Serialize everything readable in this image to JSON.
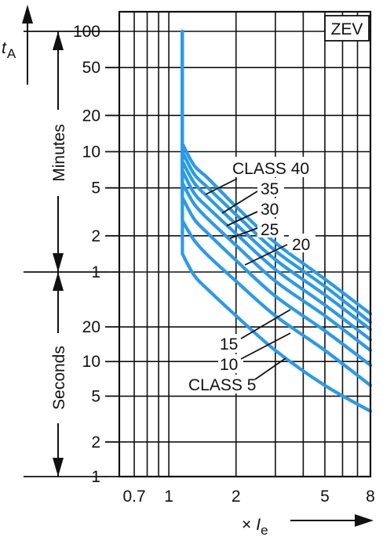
{
  "chart_data": {
    "type": "line",
    "y_label_main": "t",
    "y_label_sub": "A",
    "x_label_prefix": "×",
    "x_label_main": "I",
    "x_label_sub": "e",
    "badge": "ZEV",
    "x_scale": "log",
    "y_scale": "log",
    "xlim": [
      0.6,
      8
    ],
    "ylim_seconds": [
      1,
      6000
    ],
    "grid": true,
    "x_ticks": [
      {
        "label": "0.7",
        "value": 0.7
      },
      {
        "label": "1",
        "value": 1
      },
      {
        "label": "2",
        "value": 2
      },
      {
        "label": "5",
        "value": 5
      },
      {
        "label": "8",
        "value": 8
      }
    ],
    "minute_ticks": [
      {
        "label": "100",
        "value": 100
      },
      {
        "label": "50",
        "value": 50
      },
      {
        "label": "20",
        "value": 20
      },
      {
        "label": "10",
        "value": 10
      },
      {
        "label": "5",
        "value": 5
      },
      {
        "label": "2",
        "value": 2
      },
      {
        "label": "1",
        "value": 1
      }
    ],
    "second_ticks": [
      {
        "label": "20",
        "value": 20
      },
      {
        "label": "10",
        "value": 10
      },
      {
        "label": "5",
        "value": 5
      },
      {
        "label": "2",
        "value": 2
      },
      {
        "label": "1",
        "value": 1
      }
    ],
    "ranges": [
      {
        "label": "Minutes",
        "unit": "min"
      },
      {
        "label": "Seconds",
        "unit": "s"
      }
    ],
    "series": [
      {
        "name": "CLASS 40",
        "x": [
          1.15,
          1.15,
          1.3,
          1.5,
          2,
          3,
          5,
          8
        ],
        "y_seconds": [
          6000,
          700,
          460,
          360,
          210,
          105,
          52,
          26
        ]
      },
      {
        "name": "35",
        "x": [
          1.15,
          1.15,
          1.3,
          1.5,
          2,
          3,
          5,
          8
        ],
        "y_seconds": [
          6000,
          600,
          390,
          300,
          180,
          90,
          45,
          22
        ]
      },
      {
        "name": "30",
        "x": [
          1.15,
          1.15,
          1.3,
          1.5,
          2,
          3,
          5,
          8
        ],
        "y_seconds": [
          6000,
          500,
          330,
          250,
          150,
          76,
          38,
          19
        ]
      },
      {
        "name": "25",
        "x": [
          1.15,
          1.15,
          1.3,
          1.5,
          2,
          3,
          5,
          8
        ],
        "y_seconds": [
          6000,
          420,
          270,
          205,
          125,
          63,
          31,
          15.5
        ]
      },
      {
        "name": "20",
        "x": [
          1.15,
          1.15,
          1.3,
          1.5,
          2,
          3,
          5,
          8
        ],
        "y_seconds": [
          6000,
          330,
          220,
          165,
          100,
          50,
          25,
          12.5
        ]
      },
      {
        "name": "15",
        "x": [
          1.15,
          1.15,
          1.3,
          1.5,
          2,
          3,
          5,
          8
        ],
        "y_seconds": [
          6000,
          250,
          165,
          125,
          75,
          37,
          18.5,
          9.3
        ]
      },
      {
        "name": "10",
        "x": [
          1.15,
          1.15,
          1.3,
          1.5,
          2,
          3,
          5,
          8
        ],
        "y_seconds": [
          6000,
          160,
          110,
          82,
          50,
          25,
          12.5,
          6.2
        ]
      },
      {
        "name": "CLASS 5",
        "x": [
          1.15,
          1.15,
          1.3,
          1.5,
          2,
          3,
          5,
          8
        ],
        "y_seconds": [
          6000,
          85,
          56,
          42,
          25,
          12.5,
          6.2,
          3.7
        ]
      }
    ],
    "colors": {
      "curve": "#2a9be8",
      "ink": "#111111"
    }
  }
}
